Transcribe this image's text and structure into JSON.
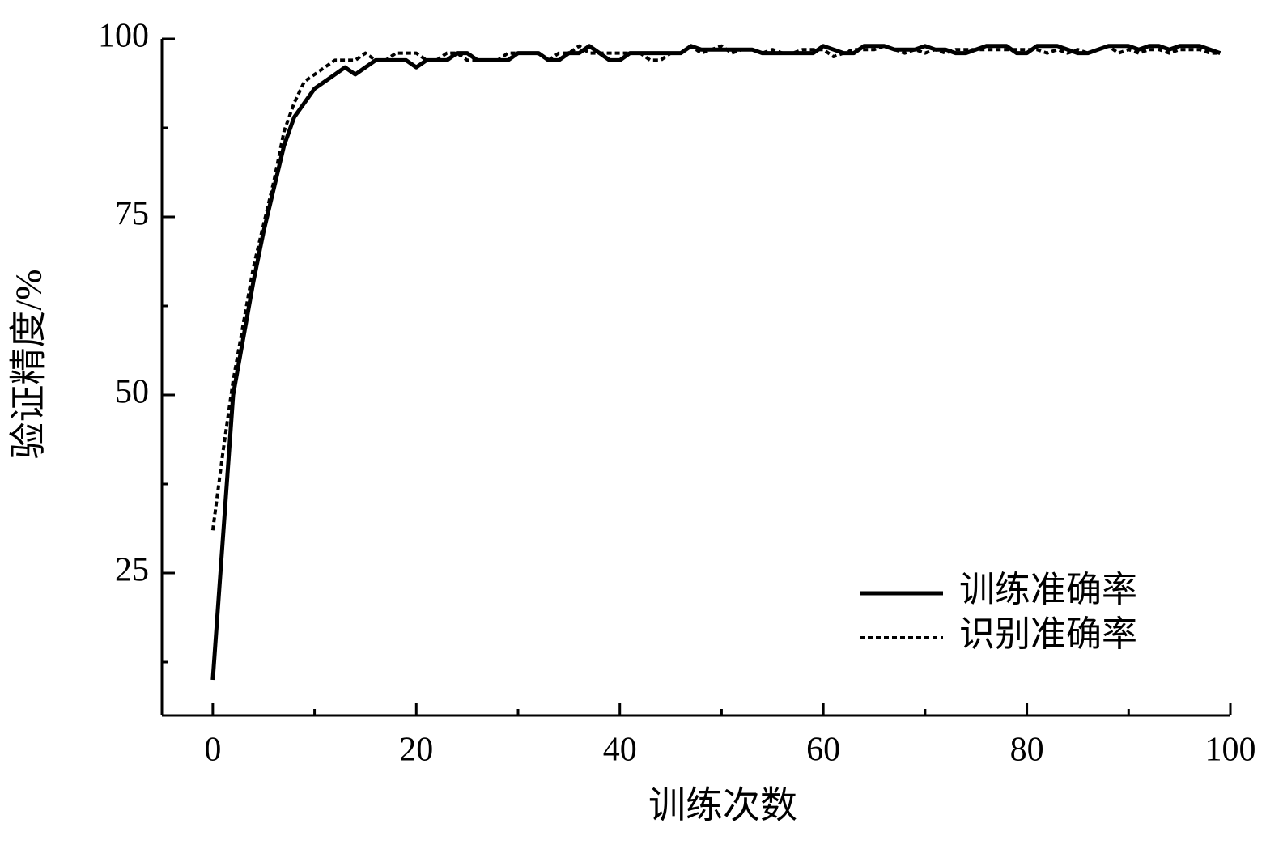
{
  "chart_data": {
    "type": "line",
    "x_label": "训练次数",
    "y_label": "验证精度/%",
    "x": [
      0,
      1,
      2,
      3,
      4,
      5,
      6,
      7,
      8,
      9,
      10,
      11,
      12,
      13,
      14,
      15,
      16,
      17,
      18,
      19,
      20,
      21,
      22,
      23,
      24,
      25,
      26,
      27,
      28,
      29,
      30,
      31,
      32,
      33,
      34,
      35,
      36,
      37,
      38,
      39,
      40,
      41,
      42,
      43,
      44,
      45,
      46,
      47,
      48,
      49,
      50,
      51,
      52,
      53,
      54,
      55,
      56,
      57,
      58,
      59,
      60,
      61,
      62,
      63,
      64,
      65,
      66,
      67,
      68,
      69,
      70,
      71,
      72,
      73,
      74,
      75,
      76,
      77,
      78,
      79,
      80,
      81,
      82,
      83,
      84,
      85,
      86,
      87,
      88,
      89,
      90,
      91,
      92,
      93,
      94,
      95,
      96,
      97,
      98,
      99
    ],
    "series": [
      {
        "name": "训练准确率",
        "color": "#000000",
        "line_style": "solid",
        "values": [
          10,
          30,
          50,
          58,
          66,
          73,
          79,
          85,
          89,
          91,
          93,
          94,
          95,
          96,
          95,
          96,
          97,
          97,
          97,
          97,
          96,
          97,
          97,
          97,
          98,
          98,
          97,
          97,
          97,
          97,
          98,
          98,
          98,
          97,
          97,
          98,
          98,
          99,
          98,
          97,
          97,
          98,
          98,
          98,
          98,
          98,
          98,
          99,
          98.5,
          98.5,
          98.5,
          98.5,
          98.5,
          98.5,
          98,
          98,
          98,
          98,
          98,
          98,
          99,
          98.5,
          98,
          98,
          99,
          99,
          99,
          98.5,
          98.5,
          98.5,
          99,
          98.5,
          98.5,
          98,
          98,
          98.5,
          99,
          99,
          99,
          98,
          98,
          99,
          99,
          99,
          98.5,
          98,
          98,
          98.5,
          99,
          99,
          99,
          98.5,
          99,
          99,
          98.5,
          99,
          99,
          99,
          98.5,
          98
        ]
      },
      {
        "name": "识别准确率",
        "color": "#000000",
        "line_style": "dotted",
        "values": [
          31,
          42,
          52,
          60,
          68,
          74,
          80,
          87,
          91,
          94,
          95,
          96,
          97,
          97,
          97,
          98,
          97,
          97,
          98,
          98,
          98,
          97,
          97,
          98,
          98,
          97,
          97,
          97,
          97,
          98,
          98,
          98,
          98,
          97,
          98,
          98,
          99,
          98,
          98,
          98,
          98,
          98,
          98,
          97,
          97,
          98,
          98,
          99,
          98,
          98.5,
          99,
          98,
          98.5,
          98.5,
          98,
          98.5,
          98,
          98,
          98.5,
          98.5,
          98.5,
          97.5,
          98,
          98.5,
          98.5,
          98.5,
          99,
          98.5,
          98,
          98.5,
          98,
          98.5,
          98,
          98.5,
          98.5,
          98.5,
          98.5,
          98.5,
          98.5,
          98.5,
          98.5,
          98.5,
          98,
          98.5,
          98,
          98.5,
          98,
          98.5,
          99,
          98,
          98.5,
          98,
          98.5,
          98.5,
          98,
          98.5,
          98.5,
          98.5,
          98,
          98
        ]
      }
    ],
    "xlim": [
      -5,
      100
    ],
    "ylim": [
      5,
      100
    ],
    "xticks": [
      0,
      20,
      40,
      60,
      80,
      100
    ],
    "xticks_minor": [
      10,
      30,
      50,
      70,
      90
    ],
    "yticks": [
      25,
      50,
      75,
      100
    ],
    "yticks_minor": [
      12.5,
      37.5,
      62.5,
      87.5
    ],
    "legend": "lower right"
  }
}
